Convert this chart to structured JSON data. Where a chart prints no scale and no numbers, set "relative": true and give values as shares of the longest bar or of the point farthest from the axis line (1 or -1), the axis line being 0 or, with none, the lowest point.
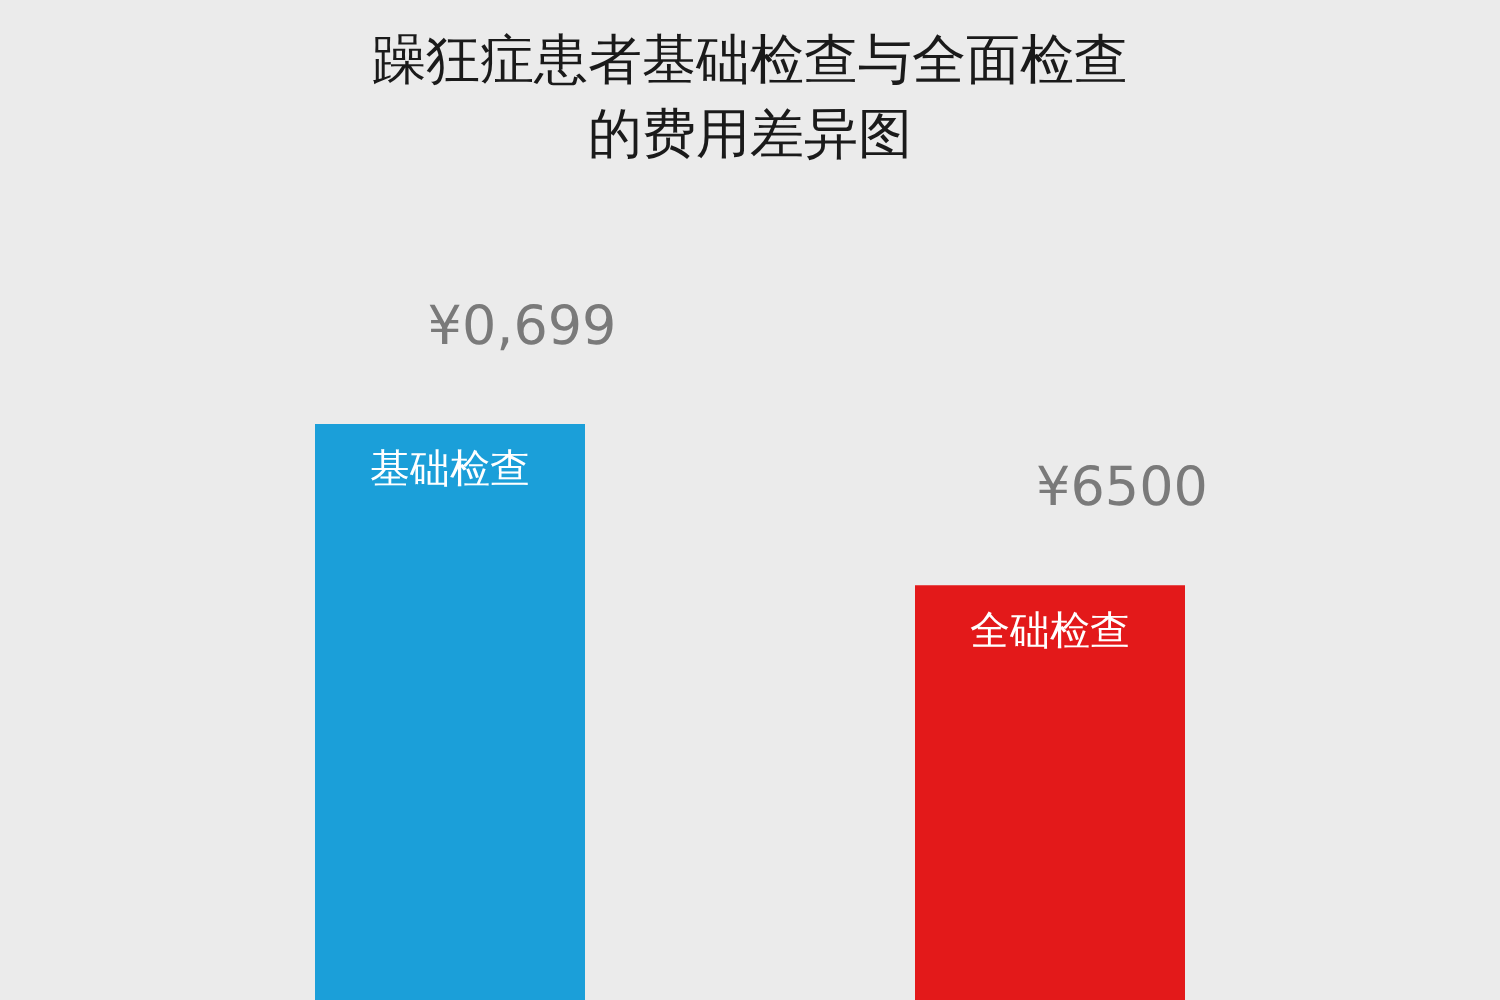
{
  "chart_data": {
    "type": "bar",
    "title": "躁狂症患者基础检查与全面检查的费用差异图",
    "categories": [
      "基础检查",
      "全础检查"
    ],
    "values": [
      1,
      0.72
    ],
    "colors": [
      "#1b9fd9",
      "#e3191a"
    ],
    "relative": true,
    "annotations": [
      {
        "text": "¥0,699",
        "x": "基础检查",
        "y": 1
      },
      {
        "text": "¥6500",
        "x": "全础检查",
        "y": 0.72
      }
    ],
    "legend": false
  }
}
